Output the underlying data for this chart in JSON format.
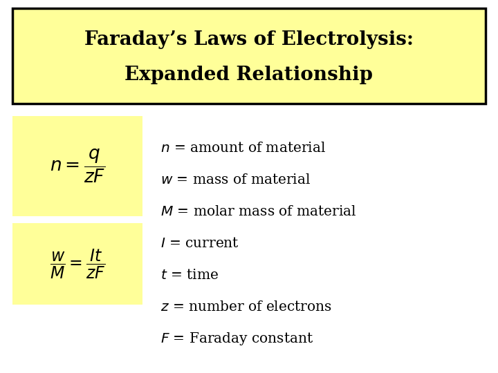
{
  "title_line1": "Faraday’s Laws of Electrolysis:",
  "title_line2": "Expanded Relationship",
  "title_bg": "#ffff99",
  "title_border": "#000000",
  "formula_bg": "#ffff99",
  "bg_color": "#ffffff",
  "definitions": [
    "$n$ = amount of material",
    "$w$ = mass of material",
    "$M$ = molar mass of material",
    "$I$ = current",
    "$t$ = time",
    "$z$ = number of electrons",
    "$F$ = Faraday constant"
  ],
  "title_fontsize": 20,
  "def_fontsize": 14.5,
  "formula1_fontsize": 19,
  "formula2_fontsize": 17
}
